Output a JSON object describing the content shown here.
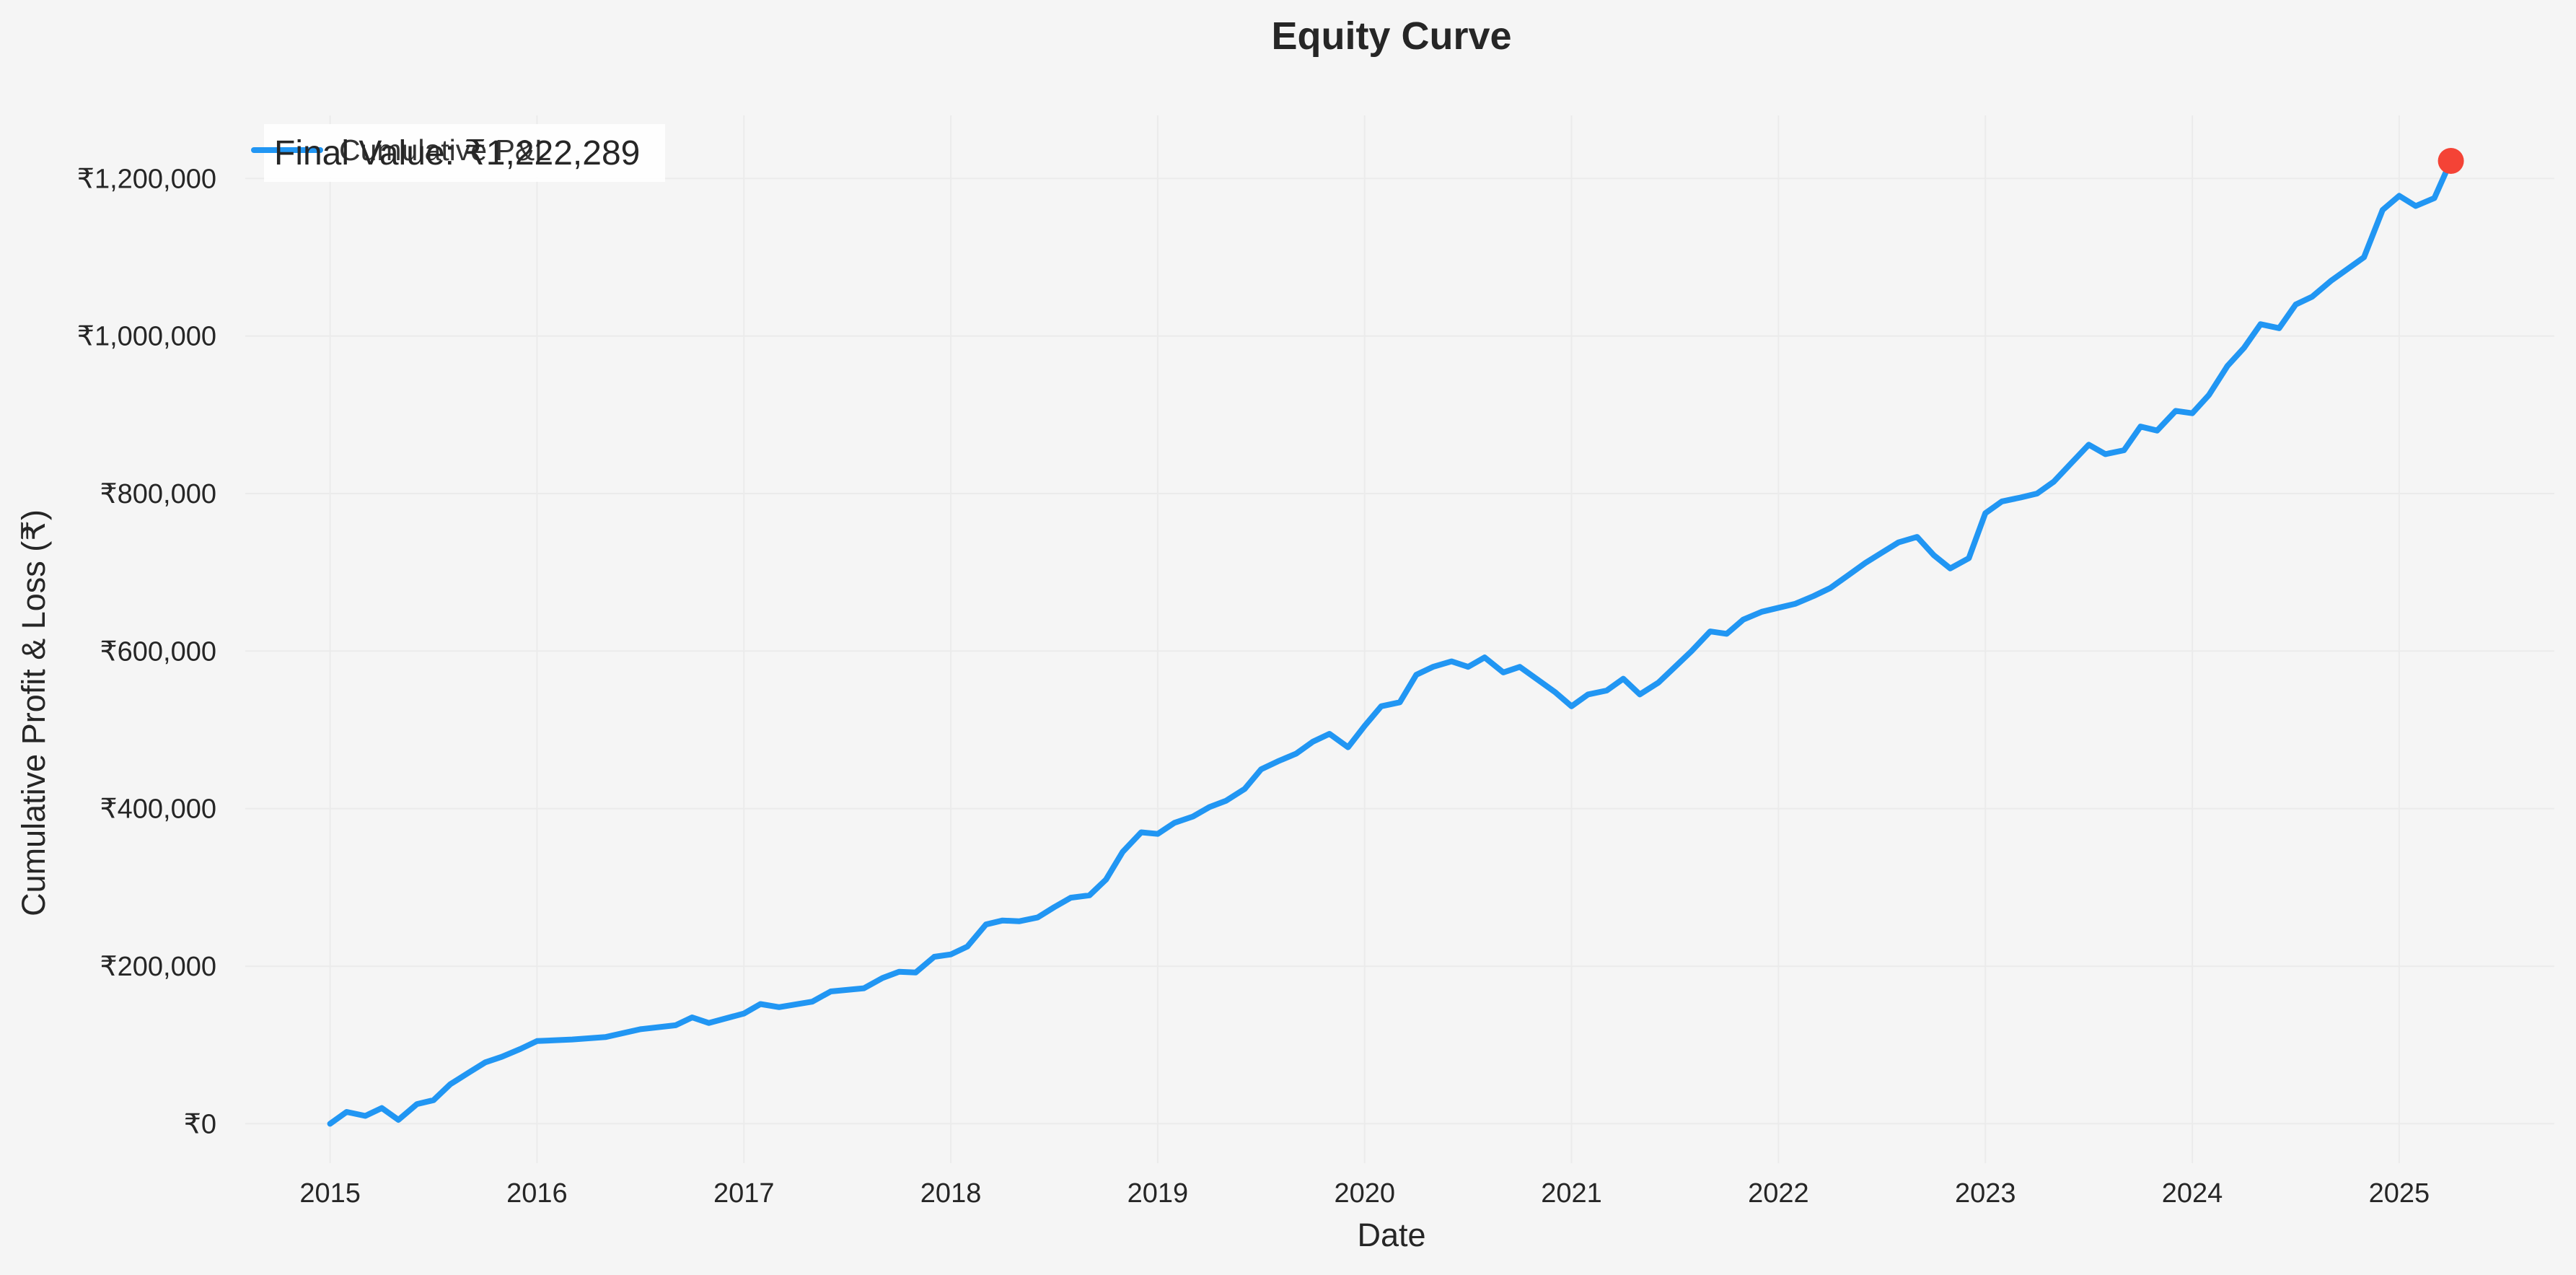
{
  "chart_data": {
    "type": "line",
    "title": "Equity Curve",
    "xlabel": "Date",
    "ylabel": "Cumulative Profit & Loss (₹)",
    "x_ticks": [
      "2015",
      "2016",
      "2017",
      "2018",
      "2019",
      "2020",
      "2021",
      "2022",
      "2023",
      "2024",
      "2025"
    ],
    "y_ticks": [
      "₹0",
      "₹200,000",
      "₹400,000",
      "₹600,000",
      "₹800,000",
      "₹1,000,000",
      "₹1,200,000"
    ],
    "y_tick_values": [
      0,
      200000,
      400000,
      600000,
      800000,
      1000000,
      1200000
    ],
    "xlim": [
      2014.59,
      2025.75
    ],
    "ylim": [
      -50000,
      1280000
    ],
    "grid": true,
    "legend_position": "top-left",
    "annotation": "Final Value: ₹1,222,289",
    "final_point": {
      "x": 2025.25,
      "y": 1222289
    },
    "series": [
      {
        "name": "Cumulative P&L",
        "color": "#2196f3",
        "points": [
          [
            2015.0,
            0
          ],
          [
            2015.08,
            15000
          ],
          [
            2015.17,
            10000
          ],
          [
            2015.25,
            20000
          ],
          [
            2015.33,
            5000
          ],
          [
            2015.42,
            25000
          ],
          [
            2015.5,
            30000
          ],
          [
            2015.58,
            50000
          ],
          [
            2015.67,
            65000
          ],
          [
            2015.75,
            78000
          ],
          [
            2015.83,
            85000
          ],
          [
            2015.92,
            95000
          ],
          [
            2016.0,
            105000
          ],
          [
            2016.17,
            107000
          ],
          [
            2016.33,
            110000
          ],
          [
            2016.5,
            120000
          ],
          [
            2016.67,
            125000
          ],
          [
            2016.75,
            135000
          ],
          [
            2016.83,
            128000
          ],
          [
            2017.0,
            140000
          ],
          [
            2017.08,
            152000
          ],
          [
            2017.17,
            148000
          ],
          [
            2017.33,
            155000
          ],
          [
            2017.42,
            168000
          ],
          [
            2017.58,
            172000
          ],
          [
            2017.67,
            185000
          ],
          [
            2017.75,
            193000
          ],
          [
            2017.83,
            192000
          ],
          [
            2017.92,
            212000
          ],
          [
            2018.0,
            215000
          ],
          [
            2018.08,
            225000
          ],
          [
            2018.17,
            253000
          ],
          [
            2018.25,
            258000
          ],
          [
            2018.33,
            257000
          ],
          [
            2018.42,
            262000
          ],
          [
            2018.5,
            275000
          ],
          [
            2018.58,
            287000
          ],
          [
            2018.67,
            290000
          ],
          [
            2018.75,
            310000
          ],
          [
            2018.83,
            345000
          ],
          [
            2018.92,
            370000
          ],
          [
            2019.0,
            368000
          ],
          [
            2019.08,
            382000
          ],
          [
            2019.17,
            390000
          ],
          [
            2019.25,
            402000
          ],
          [
            2019.33,
            410000
          ],
          [
            2019.42,
            425000
          ],
          [
            2019.5,
            450000
          ],
          [
            2019.58,
            460000
          ],
          [
            2019.67,
            470000
          ],
          [
            2019.75,
            485000
          ],
          [
            2019.83,
            495000
          ],
          [
            2019.92,
            478000
          ],
          [
            2020.0,
            505000
          ],
          [
            2020.08,
            530000
          ],
          [
            2020.17,
            535000
          ],
          [
            2020.25,
            570000
          ],
          [
            2020.33,
            580000
          ],
          [
            2020.42,
            587000
          ],
          [
            2020.5,
            580000
          ],
          [
            2020.58,
            592000
          ],
          [
            2020.67,
            573000
          ],
          [
            2020.75,
            580000
          ],
          [
            2020.83,
            565000
          ],
          [
            2020.92,
            548000
          ],
          [
            2021.0,
            530000
          ],
          [
            2021.08,
            545000
          ],
          [
            2021.17,
            550000
          ],
          [
            2021.25,
            565000
          ],
          [
            2021.33,
            545000
          ],
          [
            2021.42,
            560000
          ],
          [
            2021.5,
            580000
          ],
          [
            2021.58,
            600000
          ],
          [
            2021.67,
            625000
          ],
          [
            2021.75,
            622000
          ],
          [
            2021.83,
            640000
          ],
          [
            2021.92,
            650000
          ],
          [
            2022.0,
            655000
          ],
          [
            2022.08,
            660000
          ],
          [
            2022.17,
            670000
          ],
          [
            2022.25,
            680000
          ],
          [
            2022.33,
            695000
          ],
          [
            2022.42,
            712000
          ],
          [
            2022.5,
            725000
          ],
          [
            2022.58,
            738000
          ],
          [
            2022.67,
            745000
          ],
          [
            2022.75,
            722000
          ],
          [
            2022.83,
            705000
          ],
          [
            2022.92,
            718000
          ],
          [
            2023.0,
            775000
          ],
          [
            2023.08,
            790000
          ],
          [
            2023.17,
            795000
          ],
          [
            2023.25,
            800000
          ],
          [
            2023.33,
            815000
          ],
          [
            2023.42,
            840000
          ],
          [
            2023.5,
            862000
          ],
          [
            2023.58,
            850000
          ],
          [
            2023.67,
            855000
          ],
          [
            2023.75,
            885000
          ],
          [
            2023.83,
            880000
          ],
          [
            2023.92,
            905000
          ],
          [
            2024.0,
            902000
          ],
          [
            2024.08,
            925000
          ],
          [
            2024.17,
            962000
          ],
          [
            2024.25,
            985000
          ],
          [
            2024.33,
            1015000
          ],
          [
            2024.42,
            1010000
          ],
          [
            2024.5,
            1040000
          ],
          [
            2024.58,
            1050000
          ],
          [
            2024.67,
            1070000
          ],
          [
            2024.75,
            1085000
          ],
          [
            2024.83,
            1100000
          ],
          [
            2024.92,
            1160000
          ],
          [
            2025.0,
            1178000
          ],
          [
            2025.08,
            1165000
          ],
          [
            2025.17,
            1175000
          ],
          [
            2025.25,
            1222289
          ]
        ]
      }
    ]
  }
}
